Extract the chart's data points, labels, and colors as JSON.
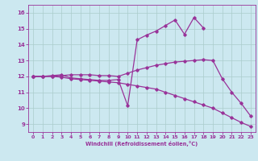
{
  "xlabel": "Windchill (Refroidissement éolien,°C)",
  "bg_color": "#cce8f0",
  "grid_color": "#aacccc",
  "line_color": "#993399",
  "xlim": [
    -0.5,
    23.5
  ],
  "ylim": [
    8.5,
    16.5
  ],
  "yticks": [
    9,
    10,
    11,
    12,
    13,
    14,
    15,
    16
  ],
  "xticks": [
    0,
    1,
    2,
    3,
    4,
    5,
    6,
    7,
    8,
    9,
    10,
    11,
    12,
    13,
    14,
    15,
    16,
    17,
    18,
    19,
    20,
    21,
    22,
    23
  ],
  "line1_x": [
    0,
    1,
    2,
    3,
    4,
    5,
    6,
    7,
    8,
    9,
    10,
    11,
    12,
    13,
    14,
    15,
    16,
    17,
    18,
    19,
    20,
    21,
    22,
    23
  ],
  "line1_y": [
    12.0,
    12.0,
    12.0,
    11.95,
    11.85,
    11.8,
    11.75,
    11.7,
    11.65,
    11.6,
    11.5,
    11.4,
    11.3,
    11.2,
    11.0,
    10.8,
    10.6,
    10.4,
    10.2,
    10.0,
    9.7,
    9.4,
    9.1,
    8.85
  ],
  "line2_x": [
    0,
    1,
    2,
    3,
    4,
    5,
    6,
    7,
    8,
    9,
    10,
    11,
    12,
    13,
    14,
    15,
    16,
    17,
    18,
    19,
    20,
    21,
    22,
    23
  ],
  "line2_y": [
    12.0,
    12.0,
    12.0,
    12.05,
    12.1,
    12.1,
    12.1,
    12.05,
    12.05,
    12.0,
    12.2,
    12.4,
    12.55,
    12.7,
    12.8,
    12.9,
    12.95,
    13.0,
    13.05,
    13.0,
    11.85,
    11.0,
    10.3,
    9.5
  ],
  "line3_x": [
    0,
    1,
    2,
    3,
    4,
    5,
    6,
    7,
    8,
    9,
    10,
    11,
    12,
    13,
    14,
    15,
    16,
    17,
    18,
    19,
    20,
    21,
    22,
    23
  ],
  "line3_y": [
    12.0,
    12.0,
    12.05,
    12.1,
    11.9,
    11.85,
    11.8,
    11.75,
    11.75,
    11.8,
    10.15,
    14.3,
    14.6,
    14.85,
    15.2,
    15.55,
    14.65,
    15.7,
    15.05,
    null,
    null,
    null,
    null,
    null
  ]
}
